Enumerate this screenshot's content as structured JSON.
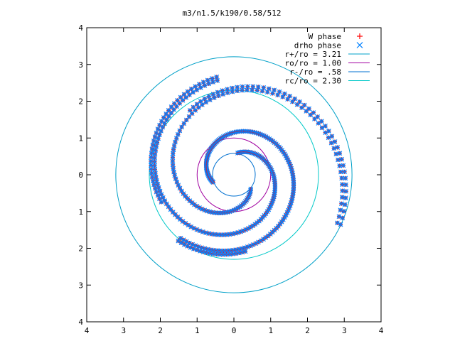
{
  "chart_data": {
    "type": "scatter",
    "title": "m3/n1.5/k190/0.58/512",
    "xlabel": "",
    "ylabel": "",
    "xlim": [
      -4,
      4
    ],
    "ylim": [
      -4,
      4
    ],
    "grid": false,
    "legend_position": "top-right",
    "x_ticks": [
      {
        "value": -4,
        "label": "4"
      },
      {
        "value": -3,
        "label": "3"
      },
      {
        "value": -2,
        "label": "2"
      },
      {
        "value": -1,
        "label": "1"
      },
      {
        "value": 0,
        "label": "0"
      },
      {
        "value": 1,
        "label": "1"
      },
      {
        "value": 2,
        "label": "2"
      },
      {
        "value": 3,
        "label": "3"
      },
      {
        "value": 4,
        "label": "4"
      }
    ],
    "y_ticks": [
      {
        "value": 4,
        "label": "4"
      },
      {
        "value": 3,
        "label": "3"
      },
      {
        "value": 2,
        "label": "2"
      },
      {
        "value": 1,
        "label": "1"
      },
      {
        "value": 0,
        "label": "0"
      },
      {
        "value": -1,
        "label": "1"
      },
      {
        "value": -2,
        "label": "2"
      },
      {
        "value": -3,
        "label": "3"
      },
      {
        "value": -4,
        "label": "4"
      }
    ],
    "series": [
      {
        "name": "W phase",
        "kind": "points",
        "marker": "plus",
        "color": "#ff0000"
      },
      {
        "name": "drho phase",
        "kind": "points",
        "marker": "cross",
        "color": "#0080ff"
      },
      {
        "name": "r+/ro = 3.21",
        "kind": "circle",
        "radius": 3.21,
        "color": "#00a0c8"
      },
      {
        "name": "ro/ro = 1.00",
        "kind": "circle",
        "radius": 1.0,
        "color": "#a000a0"
      },
      {
        "name": "r-/ro = .58",
        "kind": "circle",
        "radius": 0.58,
        "color": "#0070d0"
      },
      {
        "name": "rc/ro = 2.30",
        "kind": "circle",
        "radius": 2.3,
        "color": "#00c8c8"
      }
    ],
    "spiral_arms": [
      {
        "r_start": 0.6,
        "r_end": 2.25,
        "theta_start_deg": 200,
        "turn_deg": 330,
        "density": 26
      },
      {
        "r_start": 0.6,
        "r_end": 2.6,
        "theta_start_deg": 80,
        "turn_deg": 340,
        "density": 22
      },
      {
        "r_start": 0.6,
        "r_end": 3.1,
        "theta_start_deg": -40,
        "turn_deg": 345,
        "density": 18
      }
    ]
  }
}
